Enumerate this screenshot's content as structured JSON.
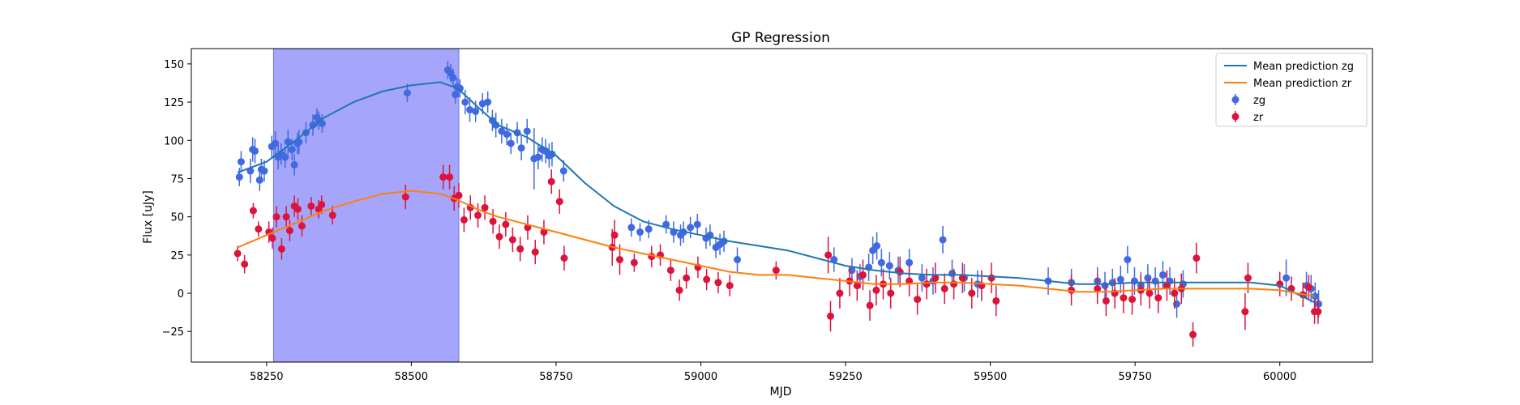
{
  "chart_data": {
    "type": "scatter",
    "title": "GP Regression",
    "xlabel": "MJD",
    "ylabel": "Flux [uJy]",
    "xlim": [
      58120,
      60160
    ],
    "ylim": [
      -45,
      160
    ],
    "xticks": [
      58250,
      58500,
      58750,
      59000,
      59250,
      59500,
      59750,
      60000
    ],
    "yticks": [
      -25,
      0,
      25,
      50,
      75,
      100,
      125,
      150
    ],
    "grid": false,
    "legend_position": "top-right",
    "shaded_region": {
      "x_start": 58262,
      "x_end": 58582,
      "color": "#a5a6fb"
    },
    "series": [
      {
        "name": "Mean prediction zg",
        "kind": "line",
        "color": "#1f77b4",
        "x": [
          58200,
          58250,
          58300,
          58350,
          58400,
          58450,
          58500,
          58550,
          58580,
          58620,
          58650,
          58700,
          58750,
          58800,
          58850,
          58900,
          58950,
          59000,
          59050,
          59100,
          59150,
          59200,
          59250,
          59300,
          59350,
          59400,
          59450,
          59500,
          59550,
          59600,
          59650,
          59700,
          59750,
          59800,
          59850,
          59900,
          59950,
          60000,
          60060
        ],
        "y": [
          79,
          86,
          100,
          115,
          125,
          132,
          136,
          138,
          134,
          120,
          110,
          102,
          90,
          72,
          57,
          47,
          42,
          38,
          34,
          31,
          28,
          23,
          18,
          15,
          13,
          12,
          12,
          11,
          10,
          8,
          6,
          6,
          7,
          7,
          7,
          7,
          7,
          5,
          -6
        ]
      },
      {
        "name": "Mean prediction zr",
        "kind": "line",
        "color": "#ff7f0e",
        "x": [
          58200,
          58250,
          58300,
          58350,
          58400,
          58450,
          58500,
          58550,
          58580,
          58620,
          58650,
          58700,
          58750,
          58800,
          58850,
          58900,
          58950,
          59000,
          59050,
          59100,
          59150,
          59200,
          59250,
          59300,
          59350,
          59400,
          59450,
          59500,
          59550,
          59600,
          59650,
          59700,
          59750,
          59800,
          59850,
          59900,
          59950,
          60000,
          60060
        ],
        "y": [
          30,
          38,
          46,
          54,
          60,
          65,
          67,
          65,
          61,
          54,
          50,
          45,
          40,
          35,
          30,
          26,
          22,
          18,
          14,
          12,
          12,
          10,
          8,
          6,
          6,
          7,
          7,
          6,
          5,
          3,
          1,
          1,
          2,
          3,
          3,
          3,
          3,
          2,
          -2
        ]
      },
      {
        "name": "zg",
        "kind": "errorbar",
        "color": "#4169e1",
        "x": [
          58203,
          58206,
          58222,
          58226,
          58230,
          58238,
          58241,
          58246,
          58259,
          58265,
          58270,
          58275,
          58282,
          58287,
          58294,
          58298,
          58303,
          58306,
          58318,
          58330,
          58337,
          58340,
          58346,
          58493,
          58563,
          58568,
          58572,
          58576,
          58579,
          58584,
          58593,
          58601,
          58611,
          58623,
          58632,
          58640,
          58646,
          58656,
          58665,
          58672,
          58683,
          58690,
          58700,
          58712,
          58719,
          58726,
          58732,
          58738,
          58743,
          58763,
          58880,
          58895,
          58910,
          58940,
          58953,
          58965,
          58970,
          58982,
          58994,
          59009,
          59016,
          59026,
          59033,
          59040,
          59063,
          59230,
          59261,
          59275,
          59290,
          59297,
          59304,
          59312,
          59326,
          59341,
          59360,
          59382,
          59401,
          59418,
          59434,
          59455,
          59478,
          59600,
          59640,
          59685,
          59698,
          59711,
          59725,
          59737,
          59749,
          59760,
          59772,
          59785,
          59798,
          59810,
          59822,
          59833,
          60011,
          60046,
          60054,
          60061,
          60067
        ],
        "y": [
          76,
          86,
          80,
          94,
          93,
          74,
          81,
          80,
          96,
          98,
          89,
          91,
          89,
          99,
          94,
          84,
          98,
          99,
          105,
          110,
          115,
          113,
          111,
          131,
          146,
          144,
          141,
          130,
          135,
          134,
          125,
          120,
          119,
          124,
          125,
          113,
          110,
          106,
          104,
          98,
          105,
          95,
          106,
          88,
          89,
          94,
          93,
          90,
          91,
          80,
          43,
          40,
          42,
          45,
          40,
          38,
          40,
          43,
          45,
          36,
          38,
          30,
          32,
          34,
          22,
          22,
          15,
          11,
          17,
          28,
          31,
          20,
          18,
          15,
          20,
          10,
          8,
          35,
          13,
          10,
          6,
          8,
          7,
          8,
          5,
          7,
          9,
          22,
          8,
          5,
          10,
          8,
          12,
          8,
          -7,
          6,
          10,
          5,
          3,
          -2,
          -7
        ],
        "yerr": [
          6,
          7,
          8,
          8,
          8,
          7,
          7,
          7,
          7,
          8,
          8,
          7,
          7,
          8,
          7,
          7,
          7,
          8,
          7,
          7,
          6,
          6,
          6,
          6,
          6,
          6,
          6,
          6,
          6,
          6,
          8,
          8,
          7,
          7,
          7,
          7,
          8,
          8,
          7,
          7,
          7,
          8,
          8,
          20,
          8,
          8,
          8,
          8,
          8,
          7,
          6,
          6,
          6,
          6,
          7,
          7,
          7,
          7,
          7,
          7,
          7,
          7,
          7,
          7,
          8,
          8,
          8,
          8,
          9,
          9,
          9,
          9,
          9,
          9,
          9,
          9,
          9,
          9,
          9,
          9,
          9,
          9,
          9,
          9,
          9,
          9,
          9,
          9,
          9,
          9,
          9,
          9,
          9,
          9,
          9,
          9,
          12,
          9,
          9,
          9,
          9
        ]
      },
      {
        "name": "zr",
        "kind": "errorbar",
        "color": "#dc143c",
        "x": [
          58200,
          58212,
          58227,
          58236,
          58254,
          58260,
          58267,
          58276,
          58284,
          58290,
          58298,
          58304,
          58311,
          58327,
          58340,
          58345,
          58364,
          58490,
          58555,
          58566,
          58574,
          58582,
          58591,
          58602,
          58615,
          58627,
          58641,
          58652,
          58663,
          58675,
          58688,
          58701,
          58714,
          58729,
          58742,
          58756,
          58764,
          58847,
          58851,
          58860,
          58885,
          58915,
          58930,
          58948,
          58963,
          58975,
          58995,
          59010,
          59030,
          59050,
          59130,
          59220,
          59224,
          59240,
          59257,
          59270,
          59280,
          59292,
          59303,
          59315,
          59328,
          59344,
          59360,
          59374,
          59390,
          59405,
          59421,
          59437,
          59452,
          59468,
          59485,
          59502,
          59510,
          59640,
          59685,
          59700,
          59715,
          59730,
          59745,
          59760,
          59775,
          59790,
          59805,
          59818,
          59830,
          59850,
          59856,
          59940,
          59945,
          60000,
          60020,
          60040,
          60050,
          60060,
          60066
        ],
        "y": [
          26,
          19,
          54,
          42,
          40,
          36,
          50,
          29,
          50,
          41,
          57,
          55,
          44,
          57,
          55,
          58,
          51,
          63,
          76,
          76,
          62,
          64,
          48,
          56,
          51,
          56,
          47,
          37,
          45,
          35,
          29,
          43,
          27,
          40,
          73,
          60,
          23,
          30,
          38,
          22,
          20,
          24,
          25,
          15,
          2,
          10,
          17,
          9,
          7,
          5,
          15,
          25,
          -15,
          0,
          8,
          5,
          12,
          -8,
          2,
          6,
          0,
          14,
          8,
          -4,
          6,
          10,
          3,
          6,
          10,
          0,
          5,
          10,
          -5,
          2,
          3,
          -5,
          0,
          -3,
          -4,
          2,
          0,
          -3,
          5,
          0,
          3,
          -27,
          23,
          -12,
          10,
          6,
          3,
          -1,
          4,
          -12,
          -12
        ],
        "yerr": [
          5,
          6,
          5,
          5,
          7,
          7,
          7,
          7,
          7,
          7,
          7,
          7,
          7,
          6,
          6,
          6,
          6,
          8,
          8,
          8,
          8,
          8,
          8,
          8,
          8,
          8,
          8,
          8,
          8,
          8,
          8,
          8,
          8,
          8,
          8,
          8,
          8,
          12,
          10,
          10,
          6,
          7,
          7,
          7,
          7,
          7,
          7,
          7,
          7,
          7,
          6,
          12,
          10,
          10,
          10,
          10,
          10,
          10,
          10,
          10,
          10,
          10,
          10,
          10,
          10,
          10,
          10,
          10,
          10,
          10,
          10,
          10,
          10,
          10,
          10,
          10,
          10,
          10,
          10,
          10,
          10,
          10,
          10,
          10,
          10,
          8,
          10,
          12,
          10,
          8,
          8,
          8,
          8,
          8,
          8
        ]
      }
    ]
  }
}
